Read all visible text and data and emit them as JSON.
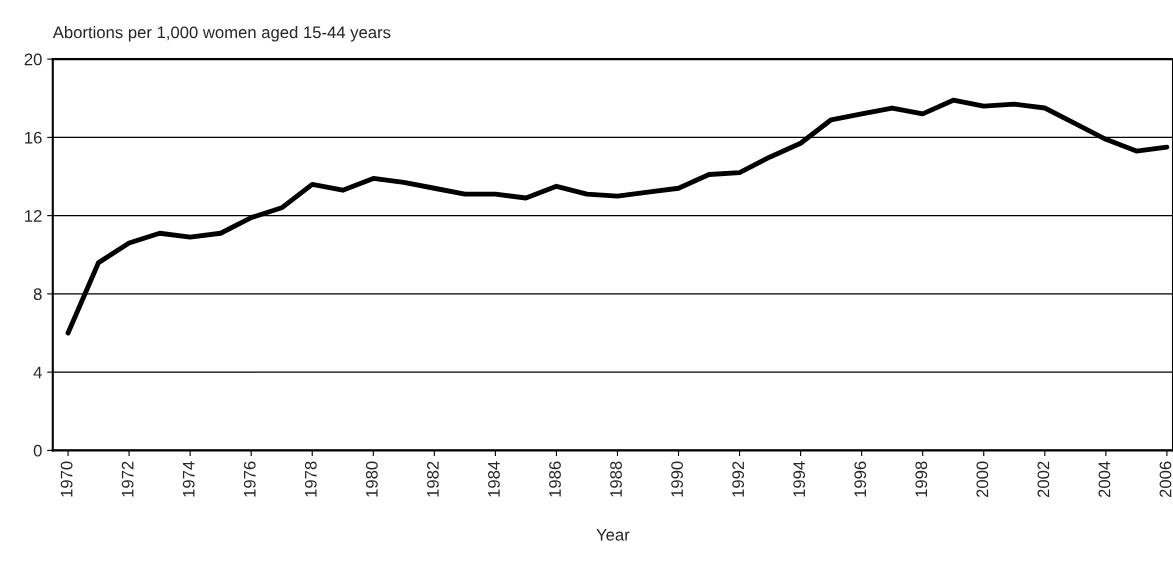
{
  "chart_data": {
    "type": "line",
    "ylabel": "Abortions per 1,000 women aged 15-44 years",
    "xlabel": "Year",
    "x": [
      1970,
      1971,
      1972,
      1973,
      1974,
      1975,
      1976,
      1977,
      1978,
      1979,
      1980,
      1981,
      1982,
      1983,
      1984,
      1985,
      1986,
      1987,
      1988,
      1989,
      1990,
      1991,
      1992,
      1993,
      1994,
      1995,
      1996,
      1997,
      1998,
      1999,
      2000,
      2001,
      2002,
      2003,
      2004,
      2005,
      2006
    ],
    "series": [
      {
        "color": "#000000",
        "values": [
          6.0,
          9.6,
          10.6,
          11.1,
          10.9,
          11.1,
          11.9,
          12.4,
          13.6,
          13.3,
          13.9,
          13.7,
          13.4,
          13.1,
          13.1,
          12.9,
          13.5,
          13.1,
          13.0,
          13.2,
          13.4,
          14.1,
          14.2,
          15.0,
          15.7,
          16.9,
          17.2,
          17.5,
          17.2,
          17.9,
          17.6,
          17.7,
          17.5,
          16.7,
          15.9,
          15.3,
          15.5
        ]
      }
    ],
    "xlim": [
      1969.5,
      2006.2
    ],
    "xticks": [
      1970,
      1972,
      1974,
      1976,
      1978,
      1980,
      1982,
      1984,
      1986,
      1988,
      1990,
      1992,
      1994,
      1996,
      1998,
      2000,
      2002,
      2004,
      2006
    ],
    "ylim": [
      0,
      20
    ],
    "yticks": [
      0,
      4,
      8,
      12,
      16,
      20
    ],
    "grid": "y",
    "legend": false,
    "marker": "none",
    "line_style": "solid"
  }
}
